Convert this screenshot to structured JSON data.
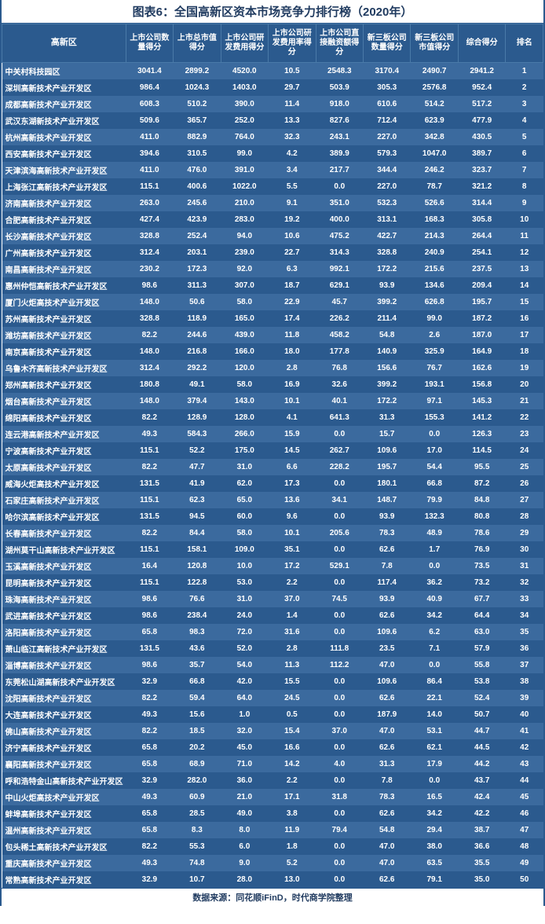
{
  "title": "图表6：全国高新区资本市场竞争力排行榜（2020年）",
  "footer": "数据来源：同花顺iFinD，时代商学院整理",
  "headers": [
    "高新区",
    "上市公司数量得分",
    "上市总市值得分",
    "上市公司研发费用得分",
    "上市公司研发费用率得分",
    "上市公司直接融资额得分",
    "新三板公司数量得分",
    "新三板公司市值得分",
    "综合得分",
    "排名"
  ],
  "colors": {
    "odd_row": "#3b6a9e",
    "even_row": "#2b5a8e",
    "header_bg": "#2b5a8e",
    "text": "#ffffff",
    "title_color": "#1f3a5f"
  },
  "rows": [
    [
      "中关村科技园区",
      "3041.4",
      "2899.2",
      "4520.0",
      "10.5",
      "2548.3",
      "3170.4",
      "2490.7",
      "2941.2",
      "1"
    ],
    [
      "深圳高新技术产业开发区",
      "986.4",
      "1024.3",
      "1403.0",
      "29.7",
      "503.9",
      "305.3",
      "2576.8",
      "952.4",
      "2"
    ],
    [
      "成都高新技术产业开发区",
      "608.3",
      "510.2",
      "390.0",
      "11.4",
      "918.0",
      "610.6",
      "514.2",
      "517.2",
      "3"
    ],
    [
      "武汉东湖新技术产业开发区",
      "509.6",
      "365.7",
      "252.0",
      "13.3",
      "827.6",
      "712.4",
      "623.9",
      "477.9",
      "4"
    ],
    [
      "杭州高新技术产业开发区",
      "411.0",
      "882.9",
      "764.0",
      "32.3",
      "243.1",
      "227.0",
      "342.8",
      "430.5",
      "5"
    ],
    [
      "西安高新技术产业开发区",
      "394.6",
      "310.5",
      "99.0",
      "4.2",
      "389.9",
      "579.3",
      "1047.0",
      "389.7",
      "6"
    ],
    [
      "天津滨海高新技术产业开发区",
      "411.0",
      "476.0",
      "391.0",
      "3.4",
      "217.7",
      "344.4",
      "246.2",
      "323.7",
      "7"
    ],
    [
      "上海张江高新技术产业开发区",
      "115.1",
      "400.6",
      "1022.0",
      "5.5",
      "0.0",
      "227.0",
      "78.7",
      "321.2",
      "8"
    ],
    [
      "济南高新技术产业开发区",
      "263.0",
      "245.6",
      "210.0",
      "9.1",
      "351.0",
      "532.3",
      "526.6",
      "314.4",
      "9"
    ],
    [
      "合肥高新技术产业开发区",
      "427.4",
      "423.9",
      "283.0",
      "19.2",
      "400.0",
      "313.1",
      "168.3",
      "305.8",
      "10"
    ],
    [
      "长沙高新技术产业开发区",
      "328.8",
      "252.4",
      "94.0",
      "10.6",
      "475.2",
      "422.7",
      "214.3",
      "264.4",
      "11"
    ],
    [
      "广州高新技术产业开发区",
      "312.4",
      "203.1",
      "239.0",
      "22.7",
      "314.3",
      "328.8",
      "240.9",
      "254.1",
      "12"
    ],
    [
      "南昌高新技术产业开发区",
      "230.2",
      "172.3",
      "92.0",
      "6.3",
      "992.1",
      "172.2",
      "215.6",
      "237.5",
      "13"
    ],
    [
      "惠州仲恺高新技术产业开发区",
      "98.6",
      "311.3",
      "307.0",
      "18.7",
      "629.1",
      "93.9",
      "134.6",
      "209.4",
      "14"
    ],
    [
      "厦门火炬高技术产业开发区",
      "148.0",
      "50.6",
      "58.0",
      "22.9",
      "45.7",
      "399.2",
      "626.8",
      "195.7",
      "15"
    ],
    [
      "苏州高新技术产业开发区",
      "328.8",
      "118.9",
      "165.0",
      "17.4",
      "226.2",
      "211.4",
      "99.0",
      "187.2",
      "16"
    ],
    [
      "潍坊高新技术产业开发区",
      "82.2",
      "244.6",
      "439.0",
      "11.8",
      "458.2",
      "54.8",
      "2.6",
      "187.0",
      "17"
    ],
    [
      "南京高新技术产业开发区",
      "148.0",
      "216.8",
      "166.0",
      "18.0",
      "177.8",
      "140.9",
      "325.9",
      "164.9",
      "18"
    ],
    [
      "乌鲁木齐高新技术产业开发区",
      "312.4",
      "292.2",
      "120.0",
      "2.8",
      "76.8",
      "156.6",
      "76.7",
      "162.6",
      "19"
    ],
    [
      "郑州高新技术产业开发区",
      "180.8",
      "49.1",
      "58.0",
      "16.9",
      "32.6",
      "399.2",
      "193.1",
      "156.8",
      "20"
    ],
    [
      "烟台高新技术产业开发区",
      "148.0",
      "379.4",
      "143.0",
      "10.1",
      "40.1",
      "172.2",
      "97.1",
      "145.3",
      "21"
    ],
    [
      "绵阳高新技术产业开发区",
      "82.2",
      "128.9",
      "128.0",
      "4.1",
      "641.3",
      "31.3",
      "155.3",
      "141.2",
      "22"
    ],
    [
      "连云港高新技术产业开发区",
      "49.3",
      "584.3",
      "266.0",
      "15.9",
      "0.0",
      "15.7",
      "0.0",
      "126.3",
      "23"
    ],
    [
      "宁波高新技术产业开发区",
      "115.1",
      "52.2",
      "175.0",
      "14.5",
      "262.7",
      "109.6",
      "17.0",
      "114.5",
      "24"
    ],
    [
      "太原高新技术产业开发区",
      "82.2",
      "47.7",
      "31.0",
      "6.6",
      "228.2",
      "195.7",
      "54.4",
      "95.5",
      "25"
    ],
    [
      "威海火炬高技术产业开发区",
      "131.5",
      "41.9",
      "62.0",
      "17.3",
      "0.0",
      "180.1",
      "66.8",
      "87.2",
      "26"
    ],
    [
      "石家庄高新技术产业开发区",
      "115.1",
      "62.3",
      "65.0",
      "13.6",
      "34.1",
      "148.7",
      "79.9",
      "84.8",
      "27"
    ],
    [
      "哈尔滨高新技术产业开发区",
      "131.5",
      "94.5",
      "60.0",
      "9.6",
      "0.0",
      "93.9",
      "132.3",
      "80.8",
      "28"
    ],
    [
      "长春高新技术产业开发区",
      "82.2",
      "84.4",
      "58.0",
      "10.1",
      "205.6",
      "78.3",
      "48.9",
      "78.6",
      "29"
    ],
    [
      "湖州莫干山高新技术产业开发区",
      "115.1",
      "158.1",
      "109.0",
      "35.1",
      "0.0",
      "62.6",
      "1.7",
      "76.9",
      "30"
    ],
    [
      "玉溪高新技术产业开发区",
      "16.4",
      "120.8",
      "10.0",
      "17.2",
      "529.1",
      "7.8",
      "0.0",
      "73.5",
      "31"
    ],
    [
      "昆明高新技术产业开发区",
      "115.1",
      "122.8",
      "53.0",
      "2.2",
      "0.0",
      "117.4",
      "36.2",
      "73.2",
      "32"
    ],
    [
      "珠海高新技术产业开发区",
      "98.6",
      "76.6",
      "31.0",
      "37.0",
      "74.5",
      "93.9",
      "40.9",
      "67.7",
      "33"
    ],
    [
      "武进高新技术产业开发区",
      "98.6",
      "238.4",
      "24.0",
      "1.4",
      "0.0",
      "62.6",
      "34.2",
      "64.4",
      "34"
    ],
    [
      "洛阳高新技术产业开发区",
      "65.8",
      "98.3",
      "72.0",
      "31.6",
      "0.0",
      "109.6",
      "6.2",
      "63.0",
      "35"
    ],
    [
      "萧山临江高新技术产业开发区",
      "131.5",
      "43.6",
      "52.0",
      "2.8",
      "111.8",
      "23.5",
      "7.1",
      "57.9",
      "36"
    ],
    [
      "淄博高新技术产业开发区",
      "98.6",
      "35.7",
      "54.0",
      "11.3",
      "112.2",
      "47.0",
      "0.0",
      "55.8",
      "37"
    ],
    [
      "东莞松山湖高新技术产业开发区",
      "32.9",
      "66.8",
      "42.0",
      "15.5",
      "0.0",
      "109.6",
      "86.4",
      "53.8",
      "38"
    ],
    [
      "沈阳高新技术产业开发区",
      "82.2",
      "59.4",
      "64.0",
      "24.5",
      "0.0",
      "62.6",
      "22.1",
      "52.4",
      "39"
    ],
    [
      "大连高新技术产业开发区",
      "49.3",
      "15.6",
      "1.0",
      "0.5",
      "0.0",
      "187.9",
      "14.0",
      "50.7",
      "40"
    ],
    [
      "佛山高新技术产业开发区",
      "82.2",
      "18.5",
      "32.0",
      "15.4",
      "37.0",
      "47.0",
      "53.1",
      "44.7",
      "41"
    ],
    [
      "济宁高新技术产业开发区",
      "65.8",
      "20.2",
      "45.0",
      "16.6",
      "0.0",
      "62.6",
      "62.1",
      "44.5",
      "42"
    ],
    [
      "襄阳高新技术产业开发区",
      "65.8",
      "68.9",
      "71.0",
      "14.2",
      "4.0",
      "31.3",
      "17.9",
      "44.2",
      "43"
    ],
    [
      "呼和浩特金山高新技术产业开发区",
      "32.9",
      "282.0",
      "36.0",
      "2.2",
      "0.0",
      "7.8",
      "0.0",
      "43.7",
      "44"
    ],
    [
      "中山火炬高技术产业开发区",
      "49.3",
      "60.9",
      "21.0",
      "17.1",
      "31.8",
      "78.3",
      "16.5",
      "42.4",
      "45"
    ],
    [
      "蚌埠高新技术产业开发区",
      "65.8",
      "28.5",
      "49.0",
      "3.8",
      "0.0",
      "62.6",
      "34.2",
      "42.2",
      "46"
    ],
    [
      "温州高新技术产业开发区",
      "65.8",
      "8.3",
      "8.0",
      "11.9",
      "79.4",
      "54.8",
      "29.4",
      "38.7",
      "47"
    ],
    [
      "包头稀土高新技术产业开发区",
      "82.2",
      "55.3",
      "6.0",
      "1.8",
      "0.0",
      "47.0",
      "38.0",
      "36.6",
      "48"
    ],
    [
      "重庆高新技术产业开发区",
      "49.3",
      "74.8",
      "9.0",
      "5.2",
      "0.0",
      "47.0",
      "63.5",
      "35.5",
      "49"
    ],
    [
      "常熟高新技术产业开发区",
      "32.9",
      "10.7",
      "28.0",
      "13.0",
      "0.0",
      "62.6",
      "79.1",
      "35.0",
      "50"
    ]
  ]
}
